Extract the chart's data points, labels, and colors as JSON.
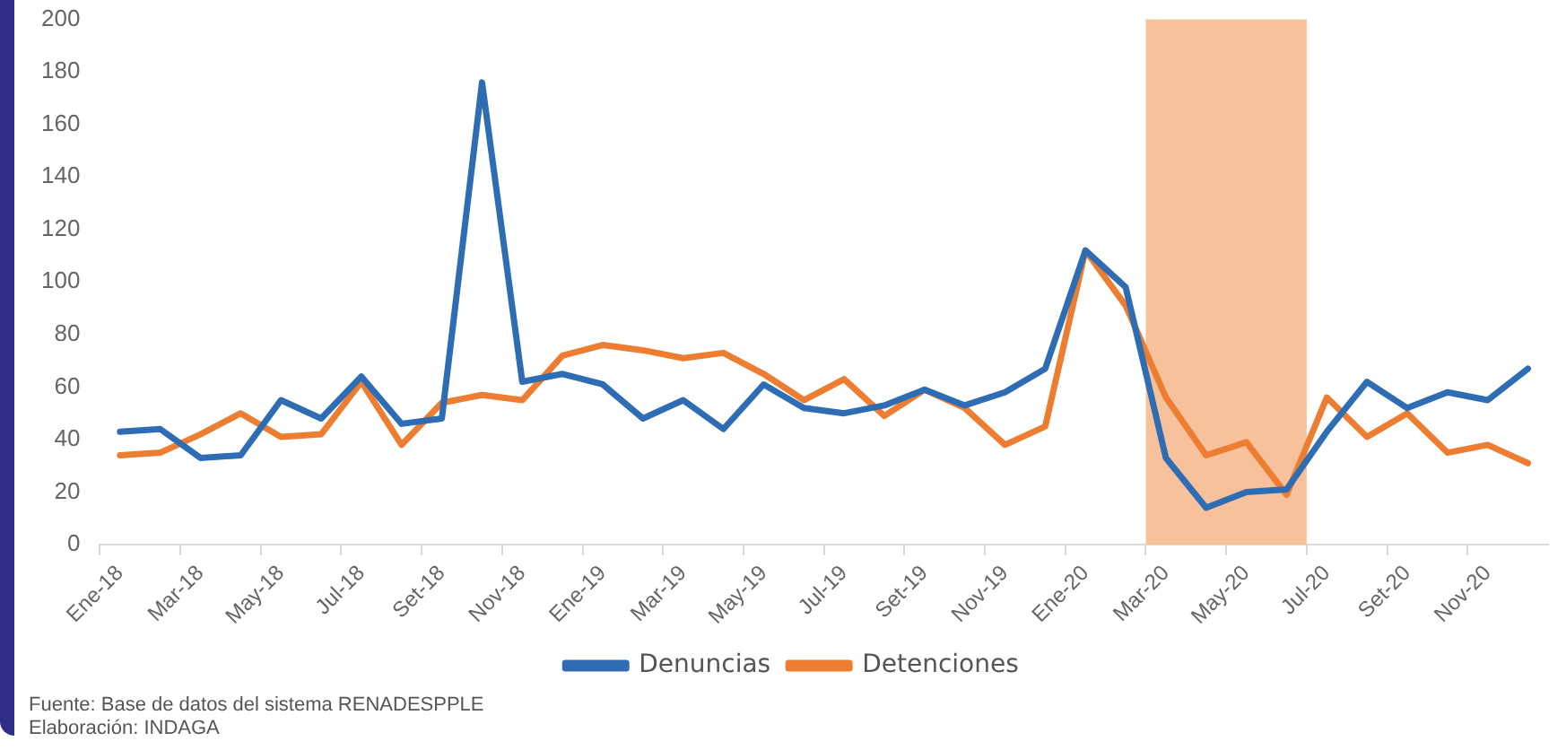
{
  "chart_data": {
    "type": "line",
    "categories": [
      "Ene-18",
      null,
      "Mar-18",
      null,
      "May-18",
      null,
      "Jul-18",
      null,
      "Set-18",
      null,
      "Nov-18",
      null,
      "Ene-19",
      null,
      "Mar-19",
      null,
      "May-19",
      null,
      "Jul-19",
      null,
      "Set-19",
      null,
      "Nov-19",
      null,
      "Ene-20",
      null,
      "Mar-20",
      null,
      "May-20",
      null,
      "Jul-20",
      null,
      "Set-20",
      null,
      "Nov-20",
      null
    ],
    "series": [
      {
        "name": "Denuncias",
        "color": "#2e6db4",
        "values": [
          43,
          44,
          33,
          34,
          55,
          48,
          64,
          46,
          48,
          176,
          62,
          65,
          61,
          48,
          55,
          44,
          61,
          52,
          50,
          53,
          59,
          53,
          58,
          67,
          112,
          98,
          33,
          14,
          20,
          21,
          43,
          62,
          52,
          58,
          55,
          67
        ]
      },
      {
        "name": "Detenciones",
        "color": "#ed7d31",
        "values": [
          34,
          35,
          42,
          50,
          41,
          42,
          62,
          38,
          54,
          57,
          55,
          72,
          76,
          74,
          71,
          73,
          65,
          55,
          63,
          49,
          59,
          52,
          38,
          45,
          112,
          91,
          56,
          34,
          39,
          19,
          56,
          41,
          50,
          35,
          38,
          31
        ]
      }
    ],
    "ylim": [
      0,
      200
    ],
    "yticks": [
      0,
      20,
      40,
      60,
      80,
      100,
      120,
      140,
      160,
      180,
      200
    ],
    "grid": false,
    "legend": "bottom",
    "marker": "none",
    "line_style": "solid",
    "bands": [
      {
        "axis": "x",
        "from": "Mar-20",
        "to": "Jul-20",
        "color": "#f7c19c"
      }
    ],
    "annotations": [
      "Fuente: Base de datos del sistema RENADESPPLE",
      "Elaboración: INDAGA"
    ]
  }
}
